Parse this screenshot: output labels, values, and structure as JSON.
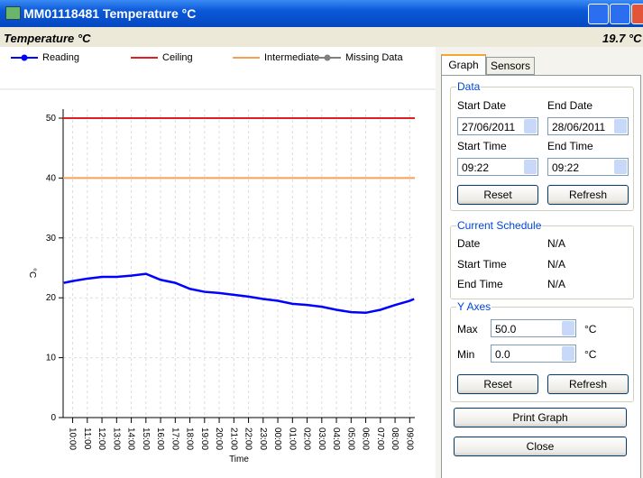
{
  "window": {
    "title": "MM01118481 Temperature °C"
  },
  "header": {
    "title": "Temperature °C",
    "current": "19.7 °C"
  },
  "chart_data": {
    "type": "line",
    "xlabel": "Time",
    "ylabel": "°C",
    "xlim": [
      9.35,
      33.35
    ],
    "ylim": [
      0,
      50
    ],
    "yticks": [
      0,
      10,
      20,
      30,
      40,
      50
    ],
    "xticks": [
      {
        "value": 10,
        "label": "10:00"
      },
      {
        "value": 11,
        "label": "11:00"
      },
      {
        "value": 12,
        "label": "12:00"
      },
      {
        "value": 13,
        "label": "13:00"
      },
      {
        "value": 14,
        "label": "14:00"
      },
      {
        "value": 15,
        "label": "15:00"
      },
      {
        "value": 16,
        "label": "16:00"
      },
      {
        "value": 17,
        "label": "17:00"
      },
      {
        "value": 18,
        "label": "18:00"
      },
      {
        "value": 19,
        "label": "19:00"
      },
      {
        "value": 20,
        "label": "20:00"
      },
      {
        "value": 21,
        "label": "21:00"
      },
      {
        "value": 22,
        "label": "22:00"
      },
      {
        "value": 23,
        "label": "23:00"
      },
      {
        "value": 24,
        "label": "00:00"
      },
      {
        "value": 25,
        "label": "01:00"
      },
      {
        "value": 26,
        "label": "02:00"
      },
      {
        "value": 27,
        "label": "03:00"
      },
      {
        "value": 28,
        "label": "04:00"
      },
      {
        "value": 29,
        "label": "05:00"
      },
      {
        "value": 30,
        "label": "06:00"
      },
      {
        "value": 31,
        "label": "07:00"
      },
      {
        "value": 32,
        "label": "08:00"
      },
      {
        "value": 33,
        "label": "09:00"
      }
    ],
    "grid": true,
    "series": [
      {
        "name": "Reading",
        "color": "#0000ff",
        "x": [
          9.4,
          10,
          11,
          12,
          13,
          14,
          15,
          15.5,
          16,
          17,
          18,
          19,
          20,
          21,
          22,
          23,
          24,
          25,
          26,
          27,
          28,
          29,
          30,
          31,
          32,
          33,
          33.3
        ],
        "values": [
          22.5,
          22.8,
          23.2,
          23.5,
          23.5,
          23.7,
          24,
          23.5,
          23,
          22.5,
          21.5,
          21,
          20.8,
          20.5,
          20.2,
          19.8,
          19.5,
          19,
          18.8,
          18.5,
          18,
          17.6,
          17.5,
          18,
          18.8,
          19.5,
          19.8
        ]
      },
      {
        "name": "Ceiling",
        "color": "#e02020",
        "value": 50
      },
      {
        "name": "Intermediate",
        "color": "#f5a05a",
        "value": 40
      },
      {
        "name": "Missing Data",
        "color": "#808080"
      }
    ]
  },
  "tabs": [
    "Graph",
    "Sensors"
  ],
  "data_group": {
    "title": "Data",
    "start_date_label": "Start Date",
    "end_date_label": "End Date",
    "start_date": "27/06/2011",
    "end_date": "28/06/2011",
    "start_time_label": "Start Time",
    "end_time_label": "End Time",
    "start_time": "09:22",
    "end_time": "09:22",
    "reset": "Reset",
    "refresh": "Refresh"
  },
  "schedule_group": {
    "title": "Current Schedule",
    "rows": [
      [
        "Date",
        "N/A"
      ],
      [
        "Start Time",
        "N/A"
      ],
      [
        "End Time",
        "N/A"
      ]
    ]
  },
  "yaxes_group": {
    "title": "Y Axes",
    "max_label": "Max",
    "max": "50.0",
    "min_label": "Min",
    "min": "0.0",
    "unit": "°C",
    "reset": "Reset",
    "refresh": "Refresh"
  },
  "buttons": {
    "print": "Print Graph",
    "close": "Close"
  }
}
